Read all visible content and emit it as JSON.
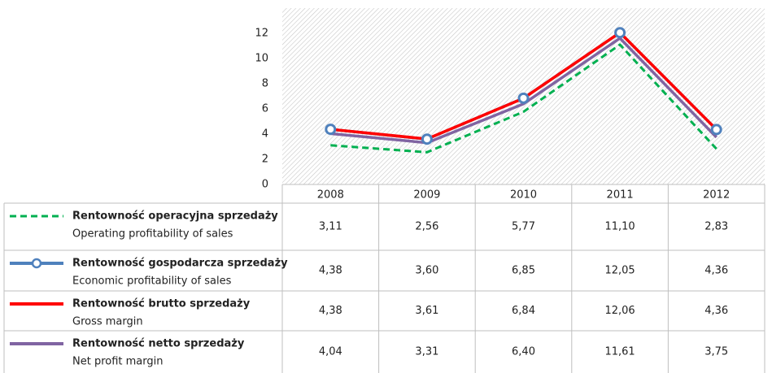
{
  "chart_data": {
    "type": "line",
    "categories": [
      "2008",
      "2009",
      "2010",
      "2011",
      "2012"
    ],
    "ylim": [
      0,
      14
    ],
    "yticks": [
      0,
      2,
      4,
      6,
      8,
      10,
      12
    ],
    "grid": false,
    "series": [
      {
        "name": "Rentowność operacyjna sprzedaży",
        "name_en": "Operating profitability of sales",
        "color": "#00b050",
        "dash": true,
        "markers": false,
        "values": [
          3.11,
          2.56,
          5.77,
          11.1,
          2.83
        ],
        "value_labels": [
          "3,11",
          "2,56",
          "5,77",
          "11,10",
          "2,83"
        ]
      },
      {
        "name": "Rentowność gospodarcza sprzedaży",
        "name_en": "Economic profitability of sales",
        "color": "#4f81bd",
        "dash": false,
        "markers": true,
        "values": [
          4.38,
          3.6,
          6.85,
          12.05,
          4.36
        ],
        "value_labels": [
          "4,38",
          "3,60",
          "6,85",
          "12,05",
          "4,36"
        ]
      },
      {
        "name": "Rentowność brutto sprzedaży",
        "name_en": "Gross margin",
        "color": "#ff0000",
        "dash": false,
        "markers": false,
        "values": [
          4.38,
          3.61,
          6.84,
          12.06,
          4.36
        ],
        "value_labels": [
          "4,38",
          "3,61",
          "6,84",
          "12,06",
          "4,36"
        ]
      },
      {
        "name": "Rentowność netto sprzedaży",
        "name_en": "Net profit margin",
        "color": "#8064a2",
        "dash": false,
        "markers": false,
        "values": [
          4.04,
          3.31,
          6.4,
          11.61,
          3.75
        ],
        "value_labels": [
          "4,04",
          "3,31",
          "6,40",
          "11,61",
          "3,75"
        ]
      }
    ]
  }
}
